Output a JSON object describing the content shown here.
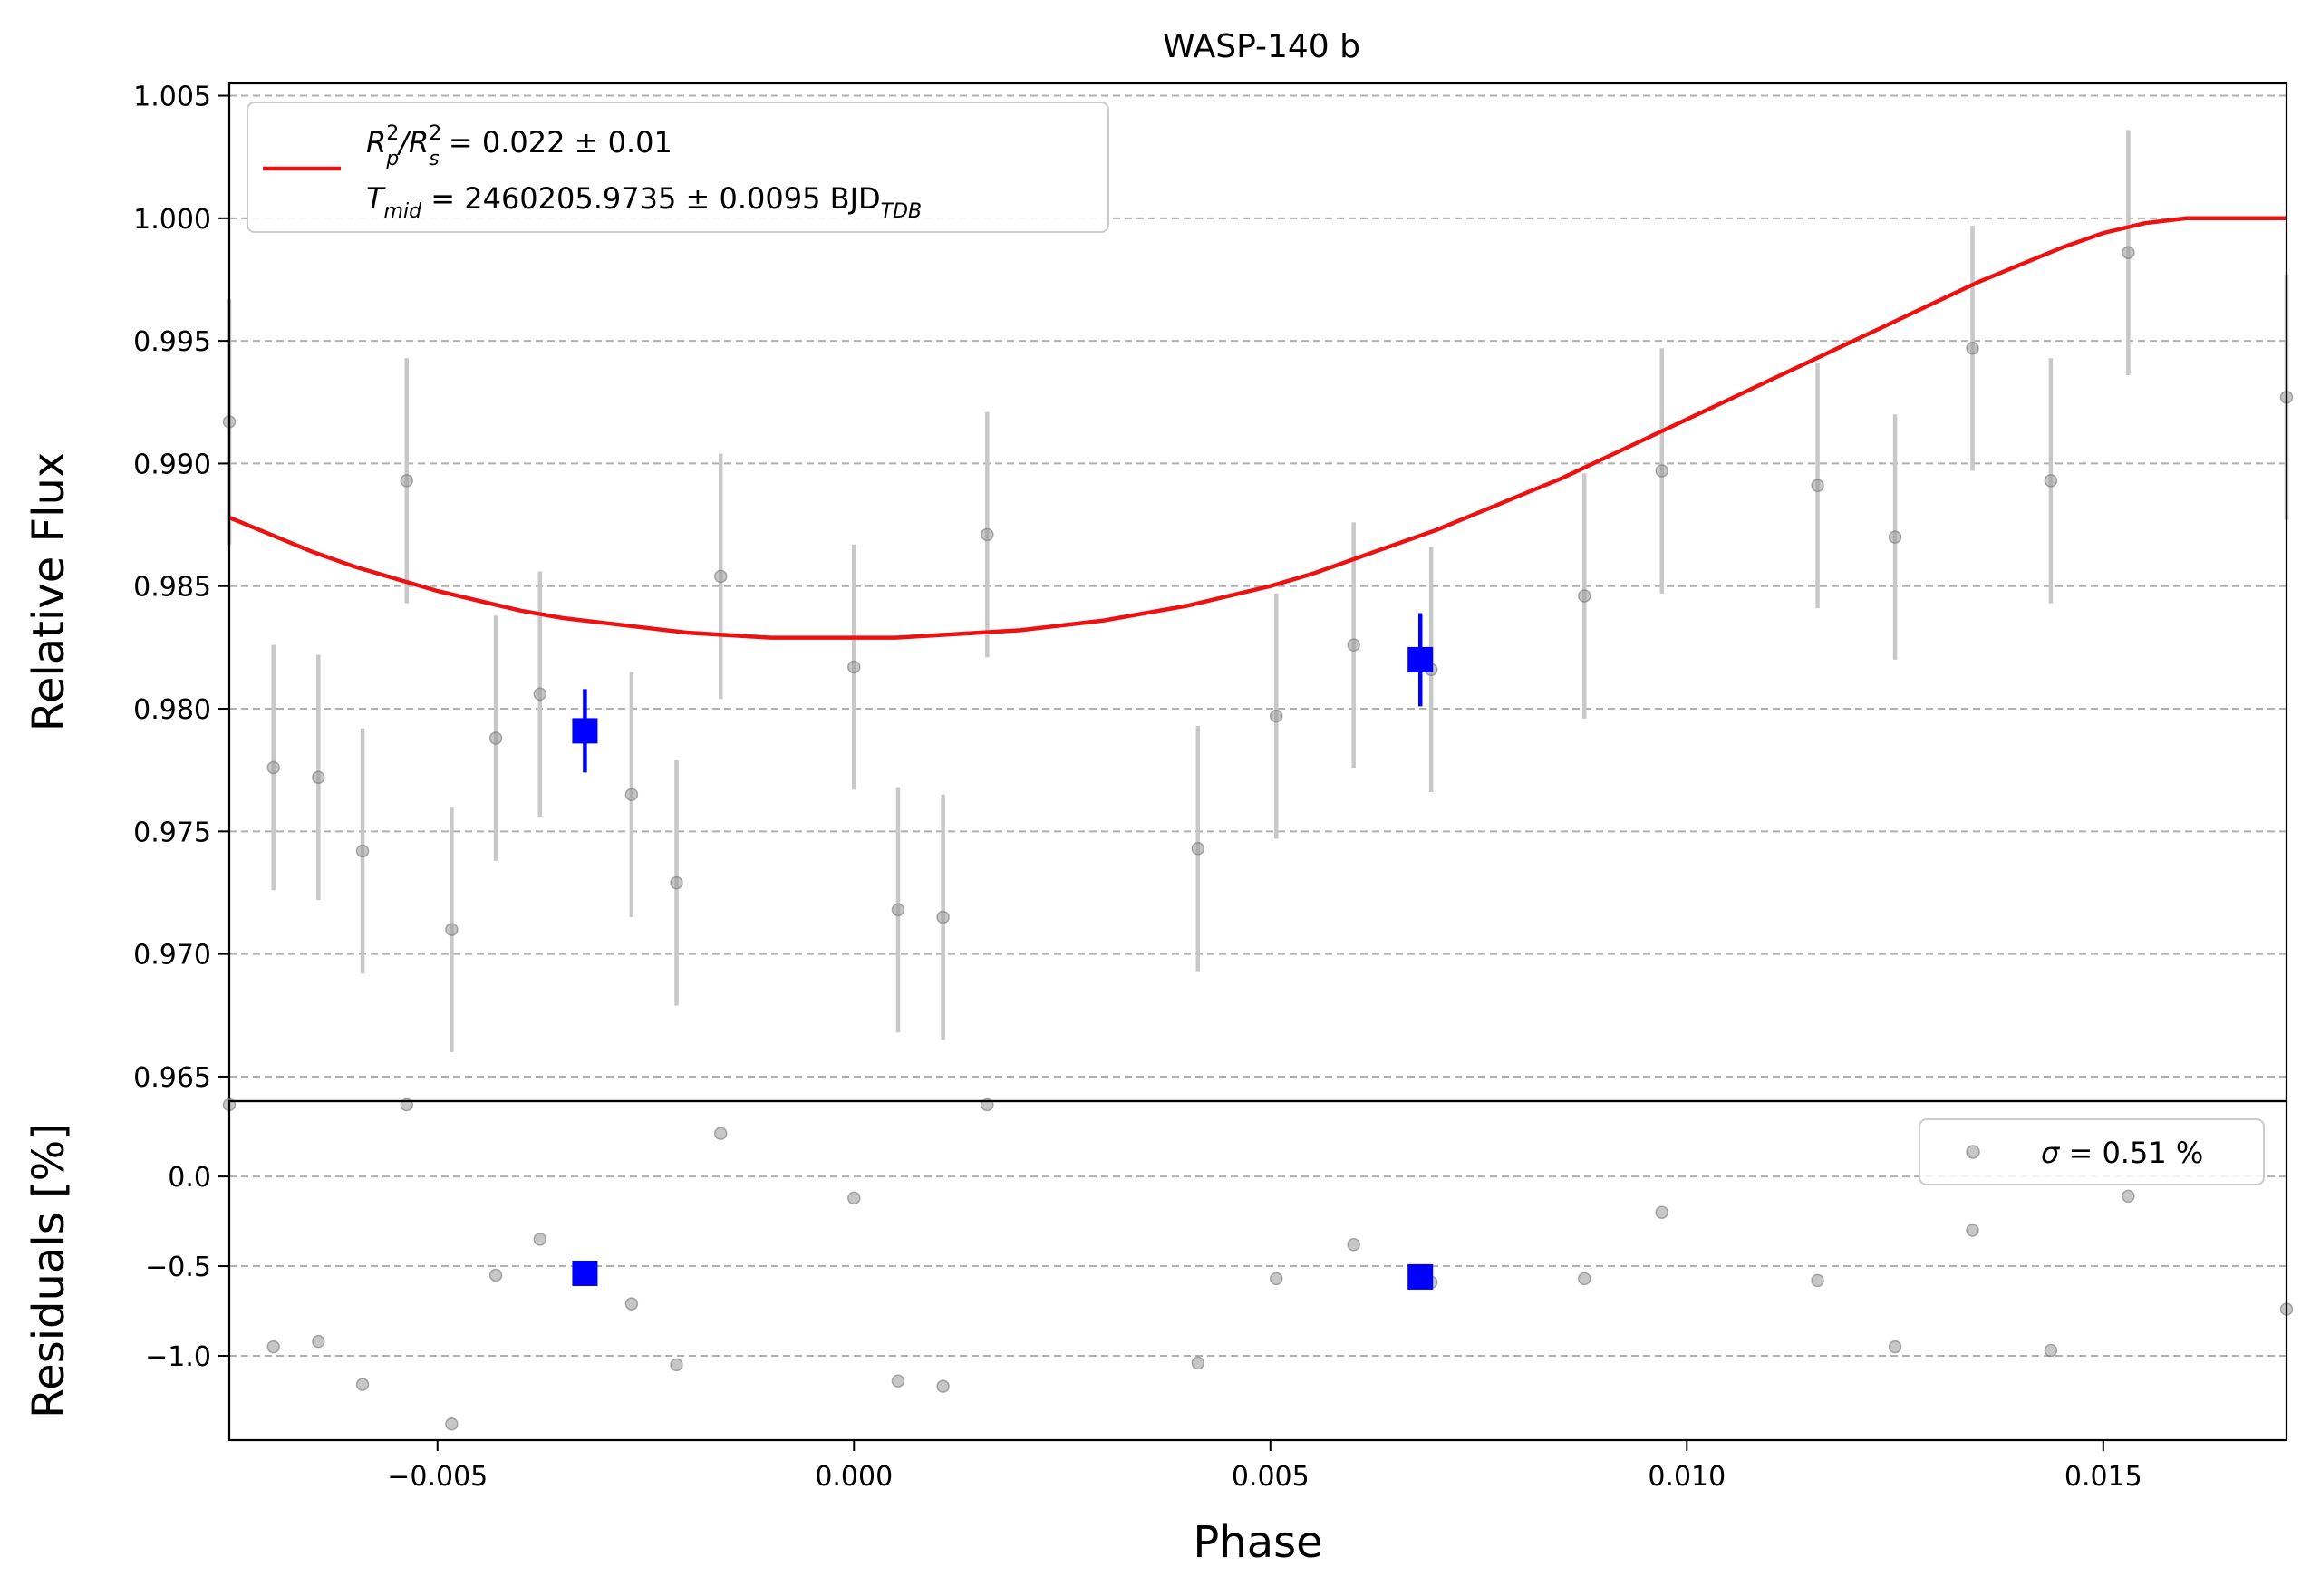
{
  "chart_data": [
    {
      "type": "scatter",
      "panel": "light-curve",
      "title": "WASP-140 b",
      "ylabel": "Relative Flux",
      "xlim": [
        -0.0075,
        0.0172
      ],
      "ylim": [
        0.964,
        1.0055
      ],
      "grid": "y dashed",
      "legend_position": "top-left",
      "yticks": [
        {
          "value": 0.965,
          "label": "0.965"
        },
        {
          "value": 0.97,
          "label": "0.970"
        },
        {
          "value": 0.975,
          "label": "0.975"
        },
        {
          "value": 0.98,
          "label": "0.980"
        },
        {
          "value": 0.985,
          "label": "0.985"
        },
        {
          "value": 0.99,
          "label": "0.990"
        },
        {
          "value": 0.995,
          "label": "0.995"
        },
        {
          "value": 1.0,
          "label": "1.000"
        },
        {
          "value": 1.005,
          "label": "1.005"
        }
      ],
      "legend": {
        "line1_prefix": "R",
        "line1_sub_p": "p",
        "line1_sup": "2",
        "line1_slash": "/R",
        "line1_sub_s": "s",
        "line1_value": " = 0.022 ± 0.01",
        "line2_prefix": "T",
        "line2_sub": "mid",
        "line2_value": " = 2460205.9735 ± 0.0095 BJD",
        "line2_unit_sub": "TDB"
      },
      "colors": {
        "model": "#ee1111",
        "binned": "#0000ff",
        "points": "#999999",
        "errorbars": "#c8c8c8"
      },
      "model": {
        "x": [
          -0.0075,
          -0.007,
          -0.0065,
          -0.006,
          -0.0055,
          -0.005,
          -0.0045,
          -0.004,
          -0.0035,
          -0.003,
          -0.0025,
          -0.002,
          -0.0015,
          -0.001,
          -0.0005,
          0.0,
          0.0005,
          0.001,
          0.0015,
          0.002,
          0.0025,
          0.003,
          0.0035,
          0.004,
          0.0045,
          0.005,
          0.0055,
          0.006,
          0.0065,
          0.007,
          0.0075,
          0.008,
          0.0085,
          0.009,
          0.0095,
          0.01,
          0.0105,
          0.011,
          0.0115,
          0.012,
          0.0125,
          0.013,
          0.0135,
          0.014,
          0.0145,
          0.015,
          0.0155,
          0.016,
          0.0165,
          0.0172
        ],
        "y": [
          0.9878,
          0.9871,
          0.9864,
          0.9858,
          0.9853,
          0.9848,
          0.9844,
          0.984,
          0.9837,
          0.9835,
          0.9833,
          0.9831,
          0.983,
          0.9829,
          0.9829,
          0.9829,
          0.9829,
          0.983,
          0.9831,
          0.9832,
          0.9834,
          0.9836,
          0.9839,
          0.9842,
          0.9846,
          0.985,
          0.9855,
          0.9861,
          0.9867,
          0.9873,
          0.988,
          0.9887,
          0.9894,
          0.9902,
          0.991,
          0.9918,
          0.9926,
          0.9934,
          0.9942,
          0.995,
          0.9958,
          0.9966,
          0.9974,
          0.9981,
          0.9988,
          0.9994,
          0.9998,
          1.0,
          1.0,
          1.0
        ]
      },
      "points": [
        {
          "x": -0.0075,
          "y": 0.9917,
          "err": 0.005
        },
        {
          "x": -0.00697,
          "y": 0.9776,
          "err": 0.005
        },
        {
          "x": -0.00643,
          "y": 0.9772,
          "err": 0.005
        },
        {
          "x": -0.0059,
          "y": 0.9742,
          "err": 0.005
        },
        {
          "x": -0.00537,
          "y": 0.9893,
          "err": 0.005
        },
        {
          "x": -0.00483,
          "y": 0.971,
          "err": 0.005
        },
        {
          "x": -0.0043,
          "y": 0.9788,
          "err": 0.005
        },
        {
          "x": -0.00377,
          "y": 0.9806,
          "err": 0.005
        },
        {
          "x": -0.00267,
          "y": 0.9765,
          "err": 0.005
        },
        {
          "x": -0.00213,
          "y": 0.9729,
          "err": 0.005
        },
        {
          "x": -0.0016,
          "y": 0.9854,
          "err": 0.005
        },
        {
          "x": 0.0,
          "y": 0.9817,
          "err": 0.005
        },
        {
          "x": 0.00053,
          "y": 0.9718,
          "err": 0.005
        },
        {
          "x": 0.00107,
          "y": 0.9715,
          "err": 0.005
        },
        {
          "x": 0.0016,
          "y": 0.9871,
          "err": 0.005
        },
        {
          "x": 0.00413,
          "y": 0.9743,
          "err": 0.005
        },
        {
          "x": 0.00507,
          "y": 0.9797,
          "err": 0.005
        },
        {
          "x": 0.006,
          "y": 0.9826,
          "err": 0.005
        },
        {
          "x": 0.00693,
          "y": 0.9816,
          "err": 0.005
        },
        {
          "x": 0.00877,
          "y": 0.9846,
          "err": 0.005
        },
        {
          "x": 0.0097,
          "y": 0.9897,
          "err": 0.005
        },
        {
          "x": 0.01157,
          "y": 0.9891,
          "err": 0.005
        },
        {
          "x": 0.0125,
          "y": 0.987,
          "err": 0.005
        },
        {
          "x": 0.01343,
          "y": 0.9947,
          "err": 0.005
        },
        {
          "x": 0.01437,
          "y": 0.9893,
          "err": 0.005
        },
        {
          "x": 0.0153,
          "y": 0.9986,
          "err": 0.005
        },
        {
          "x": 0.0172,
          "y": 0.9927,
          "err": 0.005
        }
      ],
      "binned": [
        {
          "x": -0.00323,
          "y": 0.9791,
          "err": 0.0017
        },
        {
          "x": 0.0068,
          "y": 0.982,
          "err": 0.0019
        }
      ]
    },
    {
      "type": "scatter",
      "panel": "residuals",
      "xlabel": "Phase",
      "ylabel": "Residuals [%]",
      "xlim": [
        -0.0075,
        0.0172
      ],
      "ylim": [
        -1.47,
        0.42
      ],
      "grid": "y dashed",
      "legend_position": "top-right",
      "legend": {
        "sigma_symbol": "σ",
        "sigma_value": " = 0.51 %"
      },
      "xticks": [
        {
          "value": -0.005,
          "label": "−0.005"
        },
        {
          "value": 0.0,
          "label": "0.000"
        },
        {
          "value": 0.005,
          "label": "0.005"
        },
        {
          "value": 0.01,
          "label": "0.010"
        },
        {
          "value": 0.015,
          "label": "0.015"
        }
      ],
      "yticks": [
        {
          "value": 0.0,
          "label": "0.0"
        },
        {
          "value": -0.5,
          "label": "−0.5"
        },
        {
          "value": -1.0,
          "label": "−1.0"
        }
      ],
      "points": [
        {
          "x": -0.0075,
          "y": 0.4
        },
        {
          "x": -0.00697,
          "y": -0.95
        },
        {
          "x": -0.00643,
          "y": -0.92
        },
        {
          "x": -0.0059,
          "y": -1.16
        },
        {
          "x": -0.00537,
          "y": 0.4
        },
        {
          "x": -0.00483,
          "y": -1.38
        },
        {
          "x": -0.0043,
          "y": -0.55
        },
        {
          "x": -0.00377,
          "y": -0.35
        },
        {
          "x": -0.00267,
          "y": -0.71
        },
        {
          "x": -0.00213,
          "y": -1.05
        },
        {
          "x": -0.0016,
          "y": 0.24
        },
        {
          "x": 0.0,
          "y": -0.12
        },
        {
          "x": 0.00053,
          "y": -1.14
        },
        {
          "x": 0.00107,
          "y": -1.17
        },
        {
          "x": 0.0016,
          "y": 0.4
        },
        {
          "x": 0.00413,
          "y": -1.04
        },
        {
          "x": 0.00507,
          "y": -0.57
        },
        {
          "x": 0.006,
          "y": -0.38
        },
        {
          "x": 0.00693,
          "y": -0.59
        },
        {
          "x": 0.00877,
          "y": -0.57
        },
        {
          "x": 0.0097,
          "y": -0.2
        },
        {
          "x": 0.01157,
          "y": -0.58
        },
        {
          "x": 0.0125,
          "y": -0.95
        },
        {
          "x": 0.01343,
          "y": -0.3
        },
        {
          "x": 0.01437,
          "y": -0.97
        },
        {
          "x": 0.0153,
          "y": -0.11
        },
        {
          "x": 0.0172,
          "y": -0.74
        }
      ],
      "binned": [
        {
          "x": -0.00323,
          "y": -0.54
        },
        {
          "x": 0.0068,
          "y": -0.56
        }
      ]
    }
  ]
}
